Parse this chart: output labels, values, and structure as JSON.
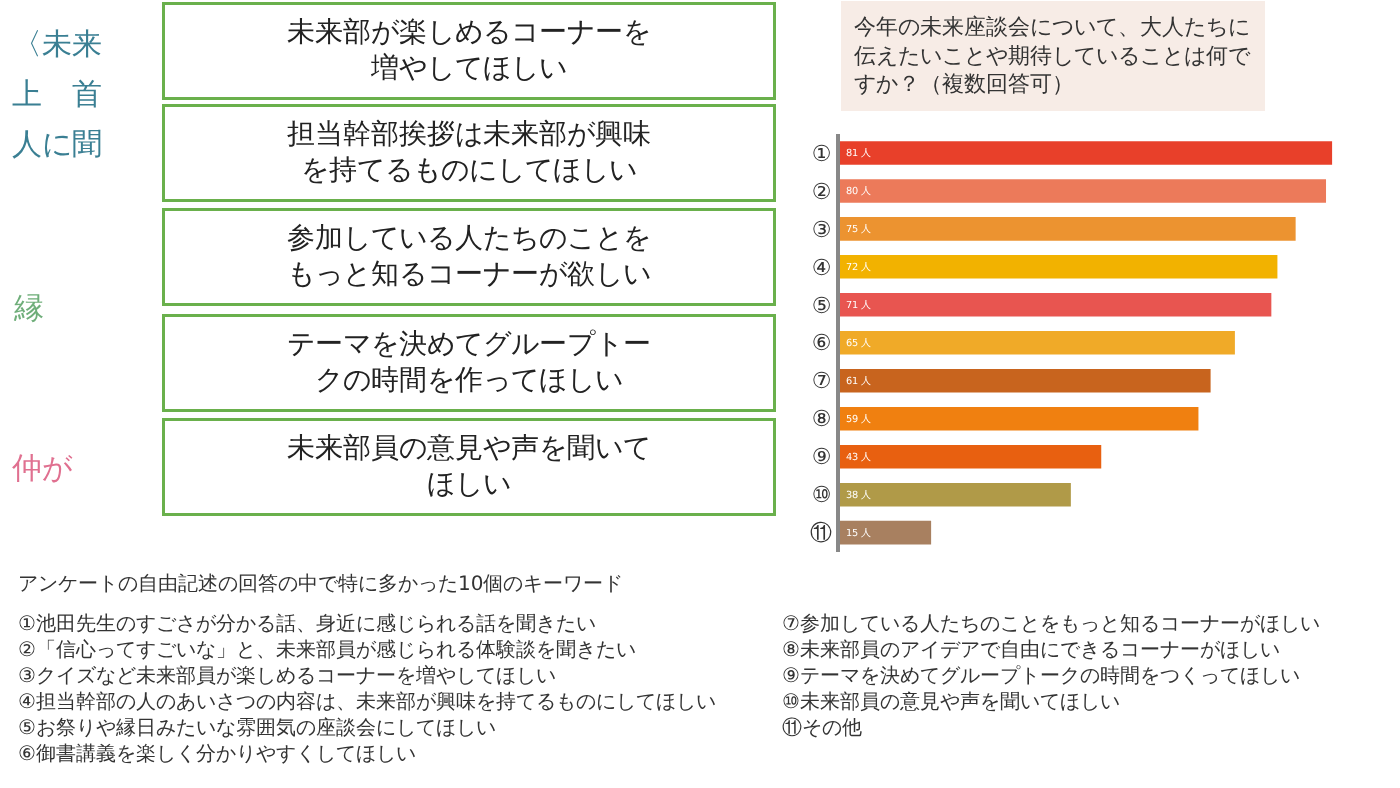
{
  "chart_data": {
    "type": "bar",
    "orientation": "horizontal",
    "title": "今年の未来座談会について、大人たちに伝えたいことや期待していることは何ですか？（複数回答可）",
    "categories": [
      "①",
      "②",
      "③",
      "④",
      "⑤",
      "⑥",
      "⑦",
      "⑧",
      "⑨",
      "⑩",
      "⑪"
    ],
    "values": [
      81,
      80,
      75,
      72,
      71,
      65,
      61,
      59,
      43,
      38,
      15
    ],
    "value_labels": [
      "81 人",
      "80 人",
      "75 人",
      "72 人",
      "71 人",
      "65 人",
      "61 人",
      "59 人",
      "43 人",
      "38 人",
      "15 人"
    ],
    "colors": [
      "#e8402a",
      "#ec7a5a",
      "#ec9330",
      "#f2b200",
      "#e85550",
      "#f0aa28",
      "#c8641e",
      "#f08010",
      "#e86010",
      "#b09a48",
      "#a88060"
    ],
    "tick_labels": "y",
    "annotations": [
      "〈未来",
      "上　首",
      "人に聞",
      "縁",
      "仲が",
      "未来部が楽しめるコーナーを増やしてほしい",
      "担当幹部挨拶は未来部が興味を持てるものにしてほしい",
      "参加している人たちのことをもっと知るコーナーが欲しい",
      "テーマを決めてグループトークの時間を作ってほしい",
      "未来部員の意見や声を聞いてほしい",
      "アンケートの自由記述の回答の中で特に多かった10個のキーワード",
      "①池田先生のすごさが分かる話、身近に感じられる話を聞きたい",
      "②「信心ってすごいな」と、未来部員が感じられる体験談を聞きたい",
      "③クイズなど未来部員が楽しめるコーナーを増やしてほしい",
      "④担当幹部の人のあいさつの内容は、未来部が興味を持てるものにしてほしい",
      "⑤お祭りや縁日みたいな雰囲気の座談会にしてほしい",
      "⑥御書講義を楽しく分かりやすくしてほしい",
      "⑦参加している人たちのことをもっと知るコーナーがほしい",
      "⑧未来部員のアイデアで自由にできるコーナーがほしい",
      "⑨テーマを決めてグループトークの時間をつくってほしい",
      "⑩未来部員の意見や声を聞いてほしい",
      "⑪その他"
    ]
  }
}
